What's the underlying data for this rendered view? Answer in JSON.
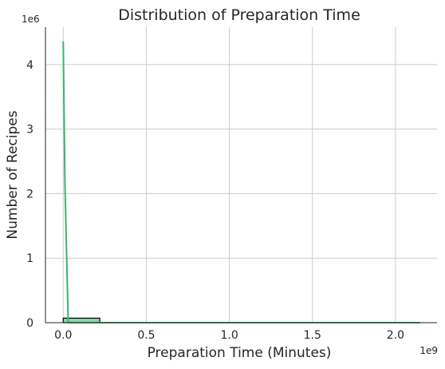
{
  "chart_data": {
    "type": "histogram",
    "title": "Distribution of Preparation Time",
    "xlabel": "Preparation Time (Minutes)",
    "ylabel": "Number of Recipes",
    "x_offset_text": "1e9",
    "y_offset_text": "1e6",
    "xlim": [
      -0.107,
      2.25
    ],
    "ylim": [
      0,
      4.58
    ],
    "x_ticks": [
      0.0,
      0.5,
      1.0,
      1.5,
      2.0
    ],
    "x_tick_labels": [
      "0.0",
      "0.5",
      "1.0",
      "1.5",
      "2.0"
    ],
    "y_ticks": [
      0,
      1,
      2,
      3,
      4
    ],
    "y_tick_labels": [
      "0",
      "1",
      "2",
      "3",
      "4"
    ],
    "grid": true,
    "bins": [
      {
        "x_start": 0.0,
        "x_end": 0.22,
        "count": 0.07
      }
    ],
    "kde_line": {
      "x": [
        0.0,
        0.01,
        0.03,
        0.06,
        0.1,
        0.5,
        1.0,
        1.5,
        2.0,
        2.15
      ],
      "y": [
        4.36,
        2.2,
        0.0,
        0.0,
        0.0,
        0.0,
        0.0,
        0.0,
        0.0,
        0.0
      ]
    },
    "colors": {
      "bar_fill": "#93cfa9",
      "bar_edge": "#000000",
      "line": "#3cb371",
      "grid": "#cccccc",
      "axis": "#262626"
    }
  }
}
